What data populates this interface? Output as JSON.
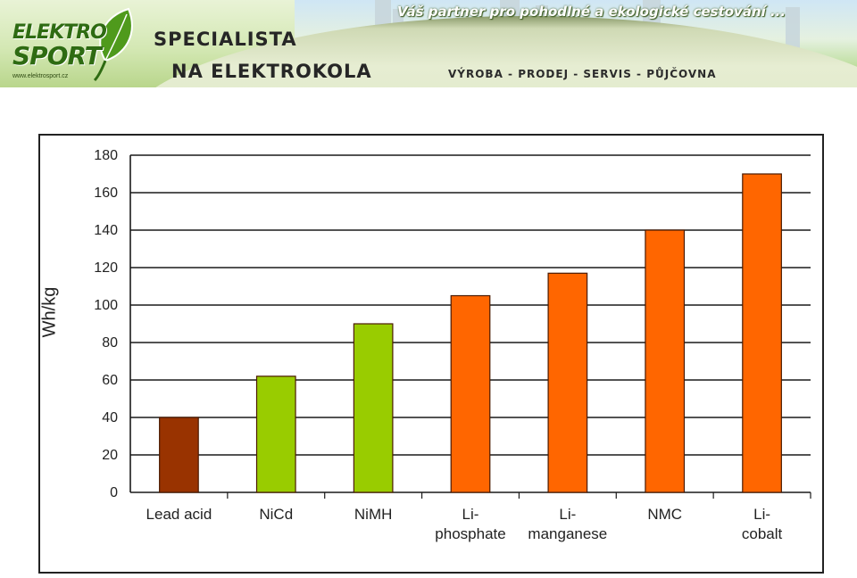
{
  "header": {
    "logo_line1": "ELEKTRO",
    "logo_line2": "SPORT",
    "logo_url": "www.elektrosport.cz",
    "title_line1": "SPECIALISTA",
    "title_line2": "NA ELEKTROKOLA",
    "services": "VÝROBA - PRODEJ - SERVIS - PŮJČOVNA",
    "slogan": "Váš partner pro pohodlné a ekologické cestování ...",
    "colors": {
      "brand_green": "#2e6b12",
      "text_dark": "#262626"
    }
  },
  "chart_data": {
    "type": "bar",
    "title": "",
    "xlabel": "",
    "ylabel": "Wh/kg",
    "ylim": [
      0,
      180
    ],
    "yticks": [
      0,
      20,
      40,
      60,
      80,
      100,
      120,
      140,
      160,
      180
    ],
    "grid": true,
    "categories": [
      [
        "Lead acid"
      ],
      [
        "NiCd"
      ],
      [
        "NiMH"
      ],
      [
        "Li-",
        "phosphate"
      ],
      [
        "Li-",
        "manganese"
      ],
      [
        "NMC"
      ],
      [
        "Li-",
        "cobalt"
      ]
    ],
    "values": [
      40,
      62,
      90,
      105,
      117,
      140,
      170
    ],
    "bar_colors": [
      "#993300",
      "#99cc00",
      "#99cc00",
      "#ff6600",
      "#ff6600",
      "#ff6600",
      "#ff6600"
    ]
  }
}
